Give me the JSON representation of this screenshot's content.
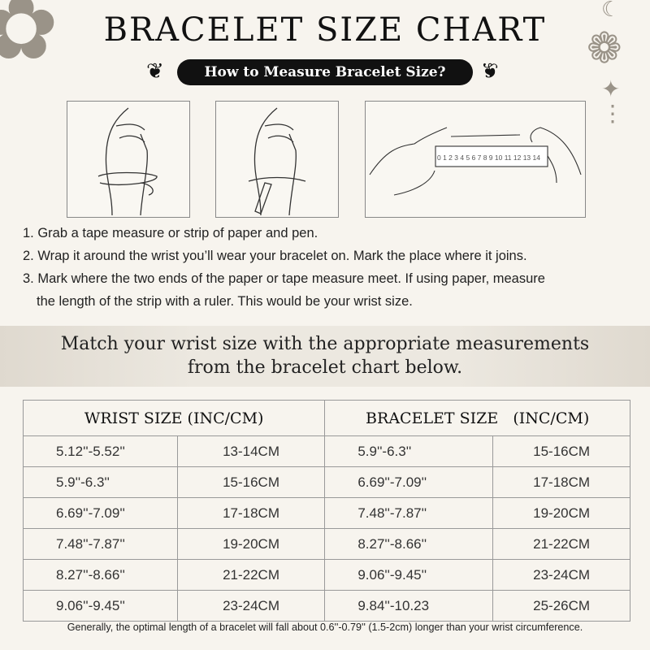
{
  "header": {
    "title": "BRACELET SIZE CHART",
    "subtitle": "How to Measure Bracelet Size?"
  },
  "illustrations": [
    {
      "icon": "hand-wrist-tape-icon"
    },
    {
      "icon": "hand-wrist-paper-icon"
    },
    {
      "icon": "ruler-measure-icon",
      "ruler_labels": "0 1 2 3 4 5 6 7 8 9 10 11 12 13 14"
    }
  ],
  "steps": [
    "1. Grab a tape measure or strip of paper and pen.",
    "2. Wrap it around the wrist you’ll wear your bracelet on. Mark the place where it joins.",
    "3. Mark where the two ends of the paper or tape measure meet. If using paper, measure",
    "the length of the strip with a ruler. This would be your wrist size."
  ],
  "band": {
    "line1": "Match your wrist size with the appropriate measurements",
    "line2": "from the bracelet chart below."
  },
  "table": {
    "headers": [
      "WRIST SIZE (INC/CM)",
      "BRACELET SIZE   (INC/CM)"
    ],
    "rows": [
      [
        "5.12''-5.52''",
        "13-14CM",
        "5.9''-6.3''",
        "15-16CM"
      ],
      [
        "5.9''-6.3''",
        "15-16CM",
        "6.69''-7.09''",
        "17-18CM"
      ],
      [
        "6.69''-7.09''",
        "17-18CM",
        "7.48''-7.87''",
        "19-20CM"
      ],
      [
        "7.48''-7.87''",
        "19-20CM",
        "8.27''-8.66''",
        "21-22CM"
      ],
      [
        "8.27''-8.66''",
        "21-22CM",
        "9.06''-9.45''",
        "23-24CM"
      ],
      [
        "9.06''-9.45''",
        "23-24CM",
        "9.84''-10.23",
        "25-26CM"
      ]
    ]
  },
  "note": "Generally, the optimal length of a bracelet will fall about 0.6''-0.79'' (1.5-2cm) longer than your wrist circumference."
}
